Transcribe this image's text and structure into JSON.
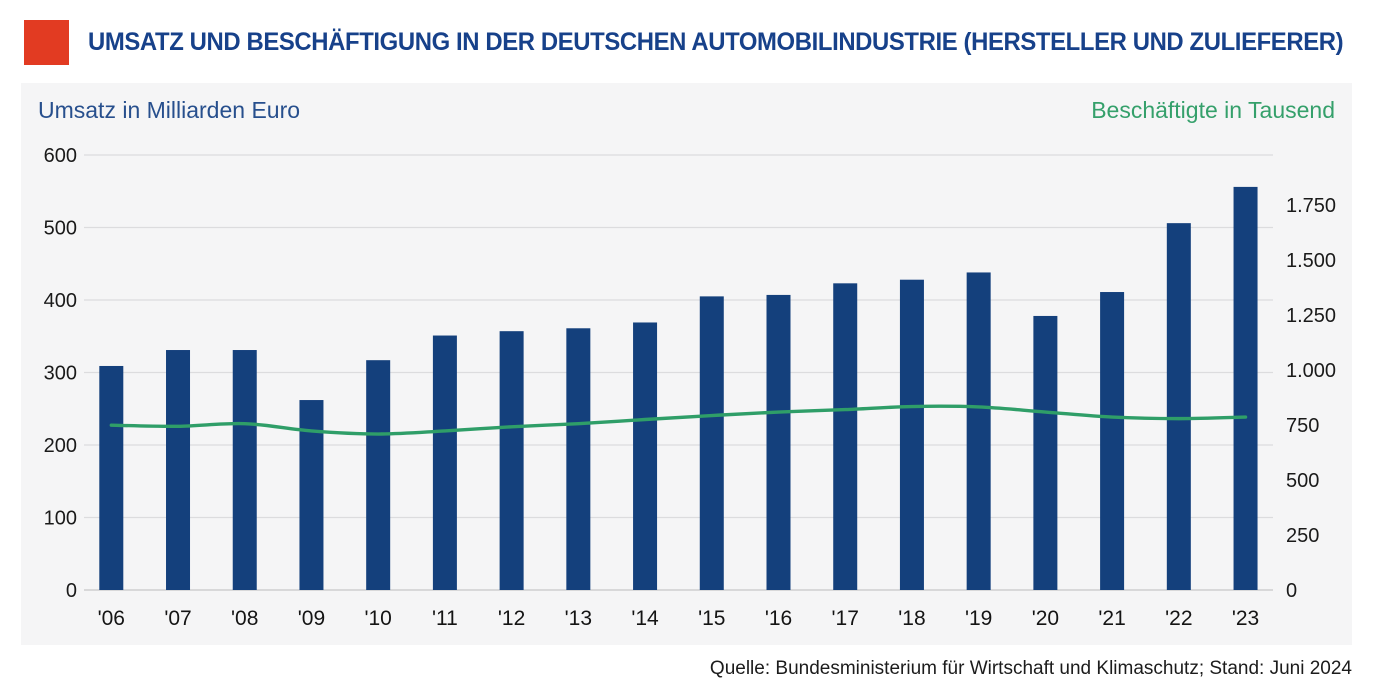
{
  "header": {
    "title": "UMSATZ UND BESCHÄFTIGUNG IN DER DEUTSCHEN AUTOMOBILINDUSTRIE (HERSTELLER UND ZULIEFERER)",
    "title_color": "#17418a",
    "accent_color": "#e23b22"
  },
  "chart_data": {
    "type": "bar+line",
    "title": "Umsatz und Beschäftigung in der deutschen Automobilindustrie (Hersteller und Zulieferer)",
    "categories": [
      "'06",
      "'07",
      "'08",
      "'09",
      "'10",
      "'11",
      "'12",
      "'13",
      "'14",
      "'15",
      "'16",
      "'17",
      "'18",
      "'19",
      "'20",
      "'21",
      "'22",
      "'23"
    ],
    "series": [
      {
        "name": "Umsatz in Milliarden Euro",
        "type": "bar",
        "axis": "left",
        "color": "#14407c",
        "values": [
          309,
          331,
          331,
          262,
          317,
          351,
          357,
          361,
          369,
          405,
          407,
          423,
          428,
          438,
          378,
          411,
          506,
          556
        ]
      },
      {
        "name": "Beschäftigte in Tausend",
        "type": "line",
        "axis": "right",
        "color": "#2f9e68",
        "values": [
          749,
          744,
          756,
          723,
          709,
          723,
          742,
          756,
          775,
          793,
          809,
          820,
          834,
          832,
          809,
          786,
          779,
          786
        ]
      }
    ],
    "left_axis": {
      "label": "Umsatz in Milliarden Euro",
      "label_color": "#274f8d",
      "range": [
        0,
        600
      ],
      "grid": true,
      "ticks": [
        {
          "value": 600,
          "label": "600"
        },
        {
          "value": 500,
          "label": "500"
        },
        {
          "value": 400,
          "label": "400"
        },
        {
          "value": 300,
          "label": "300"
        },
        {
          "value": 200,
          "label": "200"
        },
        {
          "value": 100,
          "label": "100"
        },
        {
          "value": 0,
          "label": "0"
        }
      ]
    },
    "right_axis": {
      "label": "Beschäftigte in Tausend",
      "label_color": "#35a06b",
      "range": [
        0,
        1750
      ],
      "grid": false,
      "ticks": [
        {
          "value": 1750,
          "label": "1.750"
        },
        {
          "value": 1500,
          "label": "1.500"
        },
        {
          "value": 1250,
          "label": "1.250"
        },
        {
          "value": 1000,
          "label": "1.000"
        },
        {
          "value": 750,
          "label": "750"
        },
        {
          "value": 500,
          "label": "500"
        },
        {
          "value": 250,
          "label": "250"
        },
        {
          "value": 0,
          "label": "0"
        }
      ]
    },
    "legend_position": "top-as-axis-titles",
    "colors": {
      "grid_line": "#dcdcde",
      "zero_line": "#c6c6c8",
      "tick_text": "#1a1a1a",
      "card_background": "#f5f5f6"
    }
  },
  "footer": {
    "source": "Quelle: Bundesministerium für Wirtschaft und Klimaschutz; Stand: Juni 2024"
  }
}
